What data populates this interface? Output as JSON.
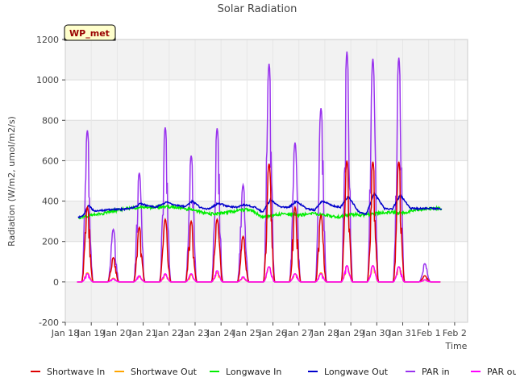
{
  "chart_data": {
    "type": "line",
    "title": "Solar Radiation",
    "xlabel": "Time",
    "ylabel": "Radiation (W/m2, umol/m2/s)",
    "ylim": [
      -200,
      1200
    ],
    "yticks": [
      -200,
      0,
      200,
      400,
      600,
      800,
      1000,
      1200
    ],
    "xlim": [
      0,
      15.5
    ],
    "xtick_values": [
      0,
      1,
      2,
      3,
      4,
      5,
      6,
      7,
      8,
      9,
      10,
      11,
      12,
      13,
      14,
      15
    ],
    "xtick_labels": [
      "Jan 18",
      "Jan 19",
      "Jan 20",
      "Jan 21",
      "Jan 22",
      "Jan 23",
      "Jan 24",
      "Jan 25",
      "Jan 26",
      "Jan 27",
      "Jan 28",
      "Jan 29",
      "Jan 30",
      "Jan 31",
      "Feb 1",
      "Feb 2"
    ],
    "grid": true,
    "background_bands": true,
    "legend_position": "bottom",
    "site_label": "WP_met",
    "peak_days": [
      0.85,
      1.85,
      2.85,
      3.85,
      4.85,
      5.85,
      6.85,
      7.85,
      8.85,
      9.85,
      10.85,
      11.85,
      12.85,
      13.85
    ],
    "series": [
      {
        "name": "Shortwave In",
        "color": "#dd0000",
        "peaks": [
          370,
          120,
          270,
          310,
          300,
          310,
          225,
          585,
          370,
          330,
          600,
          595,
          595,
          30
        ]
      },
      {
        "name": "Shortwave Out",
        "color": "#ffa500",
        "peaks": [
          45,
          18,
          25,
          35,
          35,
          45,
          20,
          75,
          40,
          45,
          80,
          80,
          75,
          10
        ]
      },
      {
        "name": "Longwave In",
        "color": "#00ee00",
        "base": 330,
        "points": [
          [
            0.5,
            315
          ],
          [
            1.0,
            330
          ],
          [
            1.5,
            340
          ],
          [
            2.0,
            355
          ],
          [
            2.5,
            365
          ],
          [
            3.0,
            370
          ],
          [
            3.5,
            370
          ],
          [
            4.0,
            372
          ],
          [
            4.5,
            365
          ],
          [
            5.0,
            355
          ],
          [
            5.5,
            335
          ],
          [
            6.0,
            340
          ],
          [
            6.5,
            350
          ],
          [
            7.0,
            360
          ],
          [
            7.3,
            345
          ],
          [
            7.6,
            320
          ],
          [
            8.0,
            330
          ],
          [
            8.5,
            338
          ],
          [
            9.0,
            330
          ],
          [
            9.5,
            340
          ],
          [
            10.0,
            330
          ],
          [
            10.5,
            320
          ],
          [
            11.0,
            335
          ],
          [
            11.5,
            330
          ],
          [
            12.0,
            340
          ],
          [
            12.5,
            345
          ],
          [
            13.0,
            340
          ],
          [
            13.5,
            355
          ],
          [
            14.0,
            362
          ],
          [
            14.5,
            362
          ]
        ]
      },
      {
        "name": "Longwave Out",
        "color": "#0000cc",
        "points": [
          [
            0.5,
            320
          ],
          [
            0.7,
            330
          ],
          [
            0.9,
            380
          ],
          [
            1.1,
            350
          ],
          [
            1.5,
            355
          ],
          [
            2.0,
            360
          ],
          [
            2.3,
            360
          ],
          [
            2.7,
            370
          ],
          [
            2.9,
            390
          ],
          [
            3.2,
            375
          ],
          [
            3.5,
            370
          ],
          [
            3.9,
            395
          ],
          [
            4.3,
            378
          ],
          [
            4.6,
            372
          ],
          [
            4.9,
            400
          ],
          [
            5.2,
            368
          ],
          [
            5.5,
            360
          ],
          [
            5.9,
            390
          ],
          [
            6.3,
            372
          ],
          [
            6.6,
            370
          ],
          [
            6.9,
            382
          ],
          [
            7.3,
            370
          ],
          [
            7.6,
            345
          ],
          [
            7.9,
            405
          ],
          [
            8.3,
            372
          ],
          [
            8.6,
            368
          ],
          [
            8.9,
            400
          ],
          [
            9.3,
            362
          ],
          [
            9.6,
            355
          ],
          [
            9.9,
            400
          ],
          [
            10.3,
            378
          ],
          [
            10.6,
            370
          ],
          [
            10.9,
            425
          ],
          [
            11.3,
            348
          ],
          [
            11.6,
            335
          ],
          [
            11.9,
            440
          ],
          [
            12.3,
            362
          ],
          [
            12.6,
            360
          ],
          [
            12.9,
            430
          ],
          [
            13.3,
            365
          ],
          [
            13.6,
            362
          ],
          [
            14.0,
            365
          ],
          [
            14.5,
            362
          ]
        ]
      },
      {
        "name": "PAR in",
        "color": "#9933ee",
        "peaks": [
          750,
          260,
          540,
          765,
          625,
          760,
          480,
          1080,
          690,
          860,
          1140,
          1105,
          1110,
          90
        ]
      },
      {
        "name": "PAR out",
        "color": "#ff00ff",
        "peaks": [
          40,
          15,
          30,
          40,
          40,
          55,
          25,
          75,
          40,
          40,
          80,
          80,
          75,
          10
        ]
      }
    ]
  }
}
